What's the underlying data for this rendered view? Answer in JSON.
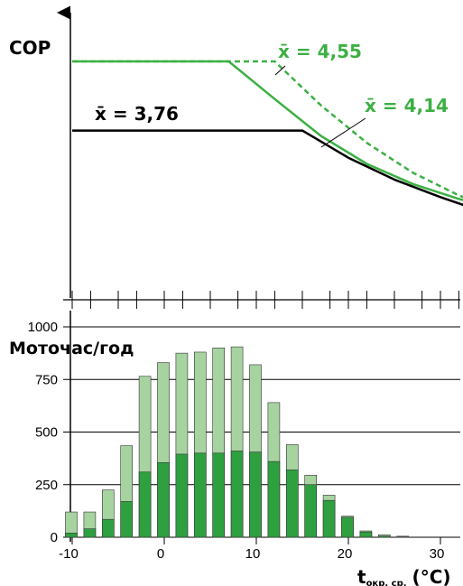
{
  "colors": {
    "axis": "#000000",
    "black_line": "#000000",
    "green_line": "#3cb043",
    "green_dark": "#2ea040",
    "green_light": "#a6d3a0",
    "bar_outline": "#333333"
  },
  "chart_data": [
    {
      "type": "line",
      "ylabel": "COP",
      "x_axis_ticks_unlabeled": [
        -10,
        -8,
        -5,
        -3,
        0,
        2,
        5,
        8,
        10,
        12,
        15,
        18,
        20,
        22,
        25,
        28,
        30,
        32,
        35
      ],
      "series": [
        {
          "color": "#000000",
          "style": "solid",
          "label": "x̄ = 3,76",
          "x": [
            -10,
            15,
            20,
            25,
            30,
            35
          ],
          "y": [
            3.76,
            3.76,
            3.45,
            3.2,
            3.0,
            2.82
          ]
        },
        {
          "color": "#3cb043",
          "style": "solid",
          "label": "x̄ = 4,14",
          "x": [
            -10,
            7,
            12,
            17,
            22,
            27,
            32,
            35
          ],
          "y": [
            4.55,
            4.55,
            4.12,
            3.7,
            3.38,
            3.15,
            2.98,
            2.9
          ]
        },
        {
          "color": "#3cb043",
          "style": "dashed",
          "label": "x̄ = 4,55",
          "x": [
            -10,
            12,
            17,
            22,
            27,
            32,
            35
          ],
          "y": [
            4.55,
            4.55,
            4.05,
            3.62,
            3.28,
            3.02,
            2.9
          ]
        }
      ],
      "annotations": [
        "x̄ = 4,55",
        "x̄ = 4,14",
        "x̄ = 3,76"
      ]
    },
    {
      "type": "bar",
      "ylabel": "Моточас/год",
      "xlabel": "t",
      "xlabel_sub": "окр. ср.",
      "xlabel_unit": "(°C)",
      "ylim": [
        0,
        1000
      ],
      "yticks": [
        0,
        250,
        500,
        750,
        1000
      ],
      "xticks": [
        -10,
        0,
        10,
        20,
        30
      ],
      "x": [
        -10,
        -8,
        -6,
        -4,
        -2,
        0,
        2,
        4,
        6,
        8,
        10,
        12,
        14,
        16,
        18,
        20,
        22,
        24,
        26,
        28,
        30,
        32
      ],
      "series": [
        {
          "color": "#2ea040",
          "values": [
            20,
            40,
            85,
            170,
            310,
            355,
            395,
            400,
            400,
            410,
            405,
            360,
            320,
            250,
            175,
            95,
            25,
            5,
            2,
            0,
            0,
            0
          ]
        },
        {
          "color": "#a6d3a0",
          "values": [
            120,
            120,
            225,
            435,
            765,
            830,
            875,
            880,
            900,
            905,
            820,
            640,
            440,
            295,
            200,
            100,
            30,
            12,
            5,
            0,
            0,
            0
          ]
        }
      ]
    }
  ]
}
